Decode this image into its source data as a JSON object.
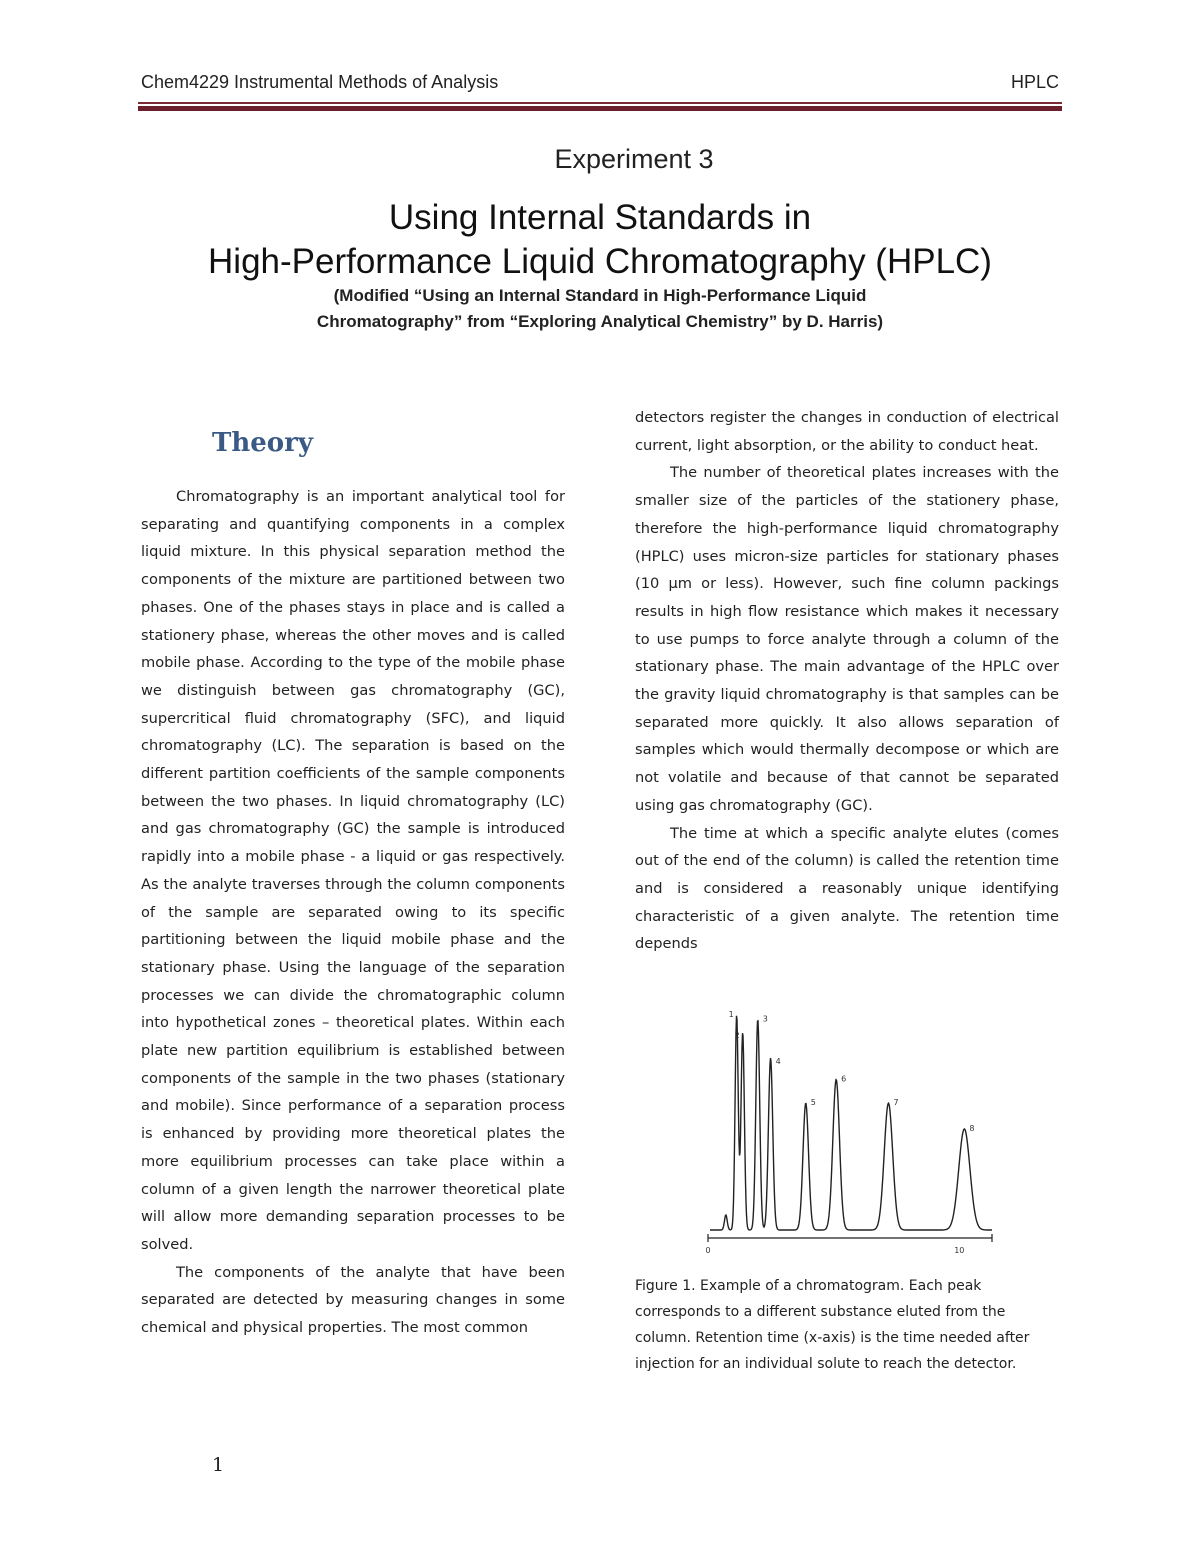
{
  "header": {
    "left": "Chem4229 Instrumental Methods of Analysis",
    "right": "HPLC",
    "rule_color": "#6b1f2a"
  },
  "experiment": "Experiment 3",
  "title_line1": "Using Internal Standards in",
  "title_line2": "High-Performance Liquid Chromatography (HPLC)",
  "subtitle_line1": "(Modified “Using an Internal Standard in High-Performance Liquid",
  "subtitle_line2": "Chromatography” from “Exploring Analytical Chemistry” by D. Harris)",
  "section_heading": "Theory",
  "section_color": "#3a5a85",
  "left_paragraphs": [
    "Chromatography is an important analytical tool for separating and quantifying components in a complex liquid mixture. In this physical separation method the components of the mixture are partitioned between two phases. One of the phases stays in place and is called a stationery phase, whereas the other moves and is called mobile phase. According to the type of the mobile phase we distinguish between gas chromatography (GC), supercritical fluid chromatography (SFC), and liquid chromatography (LC). The separation is based on the different partition coefficients of the sample components between the two phases. In liquid chromatography (LC) and gas chromatography (GC) the sample is introduced rapidly into a mobile phase - a liquid or gas respectively. As the analyte traverses through the column components of the sample are separated owing to its specific partitioning between the liquid mobile phase and the stationary phase. Using the language of the separation processes we can divide the chromatographic column into hypothetical zones – theoretical plates. Within each plate new partition equilibrium is established between components of the sample in the two phases (stationary and mobile). Since performance of a separation process is enhanced by providing more theoretical plates the more equilibrium processes can take place within a column of a given length the narrower theoretical plate will allow more demanding separation processes to be solved.",
    "The components of the analyte that have been separated are detected by measuring changes in some chemical and physical properties. The most common"
  ],
  "right_paragraphs": [
    "detectors register the changes in conduction of electrical current, light absorption, or the ability to conduct heat.",
    "The number of theoretical plates increases with the smaller size of the particles of the stationery phase, therefore the high-performance liquid chromatography (HPLC) uses micron-size particles for stationary phases (10 μm or less). However, such fine column packings results in high flow resistance which makes it necessary to use pumps to force analyte through a column of the stationary phase. The main advantage of the HPLC over the gravity liquid chromatography is that samples can be separated more quickly. It also allows separation of samples which would thermally decompose or which are not volatile and because of that cannot be separated using gas chromatography (GC).",
    "The time at which a specific analyte elutes (comes out of the end of the column) is called the retention time and is considered a reasonably unique identifying characteristic of a given analyte. The retention time depends"
  ],
  "chart_data": {
    "type": "line",
    "title": "",
    "xlabel": "",
    "ylabel": "",
    "xlim": [
      0,
      11.3
    ],
    "x_ticks": [
      "0",
      "10"
    ],
    "grid": false,
    "peaks": [
      {
        "label": "",
        "x": 0.71,
        "height": 7
      },
      {
        "label": "1",
        "x": 1.14,
        "height": 100
      },
      {
        "label": "2",
        "x": 1.38,
        "height": 92
      },
      {
        "label": "3",
        "x": 1.98,
        "height": 98
      },
      {
        "label": "4",
        "x": 2.49,
        "height": 80
      },
      {
        "label": "5",
        "x": 3.89,
        "height": 59
      },
      {
        "label": "6",
        "x": 5.1,
        "height": 70
      },
      {
        "label": "7",
        "x": 7.18,
        "height": 59
      },
      {
        "label": "8",
        "x": 10.2,
        "height": 47
      }
    ]
  },
  "caption": "Figure 1. Example of a chromatogram. Each peak corresponds to a different substance eluted from the column. Retention time (x-axis) is the time needed after injection for an individual solute to reach the detector.",
  "page_number": "1"
}
